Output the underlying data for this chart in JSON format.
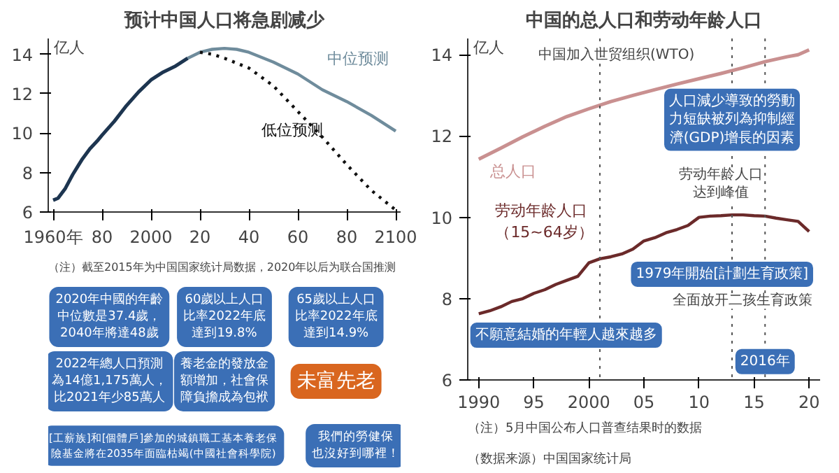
{
  "chart_data": [
    {
      "type": "line",
      "title": "预计中国人口将急剧减少",
      "ylabel": "亿人",
      "xlim": [
        1958,
        2102
      ],
      "ylim": [
        6,
        14.8
      ],
      "xticks": [
        {
          "value": 1960,
          "label": "1960年"
        },
        {
          "value": 1980,
          "label": "80"
        },
        2000,
        {
          "value": 2020,
          "label": "20"
        },
        {
          "value": 2040,
          "label": "40"
        },
        {
          "value": 2060,
          "label": "60"
        },
        {
          "value": 2080,
          "label": "80"
        },
        2100
      ],
      "yticks": [
        6,
        8,
        10,
        12,
        14
      ],
      "grid": false,
      "marker": "none",
      "series": [
        {
          "color": "#1d3550",
          "line_style": "solid",
          "x": [
            1960,
            1962,
            1965,
            1968,
            1970,
            1972,
            1975,
            1978,
            1980,
            1985,
            1990,
            1995,
            2000,
            2005,
            2010,
            2015
          ],
          "values": [
            6.6,
            6.7,
            7.2,
            7.9,
            8.3,
            8.7,
            9.2,
            9.6,
            9.9,
            10.6,
            11.4,
            12.1,
            12.7,
            13.1,
            13.4,
            13.8
          ]
        },
        {
          "name": "中位预测",
          "color": "#6f8c9c",
          "line_style": "solid",
          "x": [
            2015,
            2020,
            2025,
            2030,
            2035,
            2040,
            2050,
            2060,
            2070,
            2080,
            2090,
            2100
          ],
          "values": [
            13.8,
            14.1,
            14.25,
            14.3,
            14.25,
            14.1,
            13.6,
            13.0,
            12.2,
            11.6,
            10.9,
            10.1
          ]
        },
        {
          "name": "低位预测",
          "color": "#111111",
          "line_style": "dotted",
          "x": [
            2020,
            2025,
            2030,
            2040,
            2050,
            2060,
            2070,
            2080,
            2090,
            2100
          ],
          "values": [
            14.1,
            14.0,
            13.8,
            13.3,
            12.4,
            11.1,
            9.8,
            8.4,
            7.1,
            6.1
          ]
        }
      ],
      "annotations": [
        "（注）截至2015年为中国国家统计局数据，2020年以后为联合国推测"
      ]
    },
    {
      "type": "other",
      "colors": [
        "#3b6fb6",
        "#3b6fb6",
        "#3b6fb6",
        "#3b6fb6",
        "#3b6fb6",
        "#d9661f",
        "#3b6fb6",
        "#3b6fb6"
      ],
      "annotations": [
        "2020年中國的年齡中位數是37.4歲，2040年將達48歲",
        "60歲以上人口比率2022年底達到19.8%",
        "65歲以上人口比率2022年底達到14.9%",
        "2022年總人口預測為14億1,175萬人，比2021年少85萬人",
        "養老金的發放金額增加，社會保障負擔成為包袱",
        "未富先老",
        "[工薪族]和[個體戶]參加的城鎮職工基本養老保險基金將在2035年面臨枯竭(中國社會科學院)",
        "我們的勞健保也沒好到哪裡！"
      ]
    },
    {
      "type": "line",
      "title": "中国的总人口和劳动年龄人口",
      "ylabel": "亿人",
      "xlim": [
        1989,
        2021
      ],
      "ylim": [
        6,
        14.4
      ],
      "xticks": [
        1990,
        {
          "value": 1995,
          "label": "95"
        },
        2000,
        {
          "value": 2005,
          "label": "05"
        },
        {
          "value": 2010,
          "label": "10"
        },
        {
          "value": 2015,
          "label": "15"
        },
        {
          "value": 2020,
          "label": "20"
        }
      ],
      "yticks": [
        6,
        8,
        10,
        12,
        14
      ],
      "grid": false,
      "marker": "none",
      "series": [
        {
          "name": "总人口",
          "color": "#c99090",
          "line_style": "solid",
          "x": [
            1990,
            1992,
            1994,
            1996,
            1998,
            2000,
            2002,
            2004,
            2006,
            2008,
            2010,
            2012,
            2014,
            2016,
            2018,
            2019,
            2020
          ],
          "values": [
            11.43,
            11.7,
            11.98,
            12.24,
            12.48,
            12.67,
            12.85,
            13.0,
            13.14,
            13.28,
            13.41,
            13.54,
            13.68,
            13.83,
            13.95,
            14.0,
            14.12
          ]
        },
        {
          "name": "劳动年龄人口（15~64岁）",
          "color": "#6b2a2a",
          "line_style": "solid",
          "x": [
            1990,
            1991,
            1992,
            1993,
            1994,
            1995,
            1996,
            1997,
            1998,
            1999,
            2000,
            2001,
            2002,
            2003,
            2004,
            2005,
            2006,
            2007,
            2008,
            2009,
            2010,
            2011,
            2012,
            2013,
            2014,
            2015,
            2016,
            2017,
            2018,
            2019,
            2020
          ],
          "values": [
            7.63,
            7.7,
            7.8,
            7.93,
            8.0,
            8.13,
            8.22,
            8.35,
            8.45,
            8.55,
            8.88,
            8.98,
            9.03,
            9.1,
            9.22,
            9.42,
            9.5,
            9.62,
            9.7,
            9.8,
            10.0,
            10.03,
            10.04,
            10.06,
            10.06,
            10.04,
            10.03,
            9.98,
            9.94,
            9.9,
            9.65
          ]
        }
      ],
      "ref_lines": [
        {
          "axis": "x",
          "value": 2001,
          "label": "中国加入世贸组织(WTO)",
          "color": "#555555",
          "line_style": "dotted"
        },
        {
          "axis": "x",
          "value": 2013,
          "label": "劳动年龄人口达到峰值",
          "color": "#555555",
          "line_style": "dotted"
        },
        {
          "axis": "x",
          "value": 2016,
          "label": "全面放开二孩生育政策",
          "color": "#555555",
          "line_style": "dotted"
        }
      ],
      "annotations": [
        {
          "text": "人口減少導致的勞動力短缺被列為抑制經濟(GDP)增長的因素",
          "x": 2013,
          "y": 12.4
        },
        "1979年開始[計劃生育政策]",
        {
          "text": "2016年",
          "x": 2016,
          "y": 6.45
        },
        "不願意結婚的年輕人越來越多",
        "（注）5月中国公布人口普查结果时的数据",
        "（数据来源）中国国家统计局"
      ]
    }
  ]
}
